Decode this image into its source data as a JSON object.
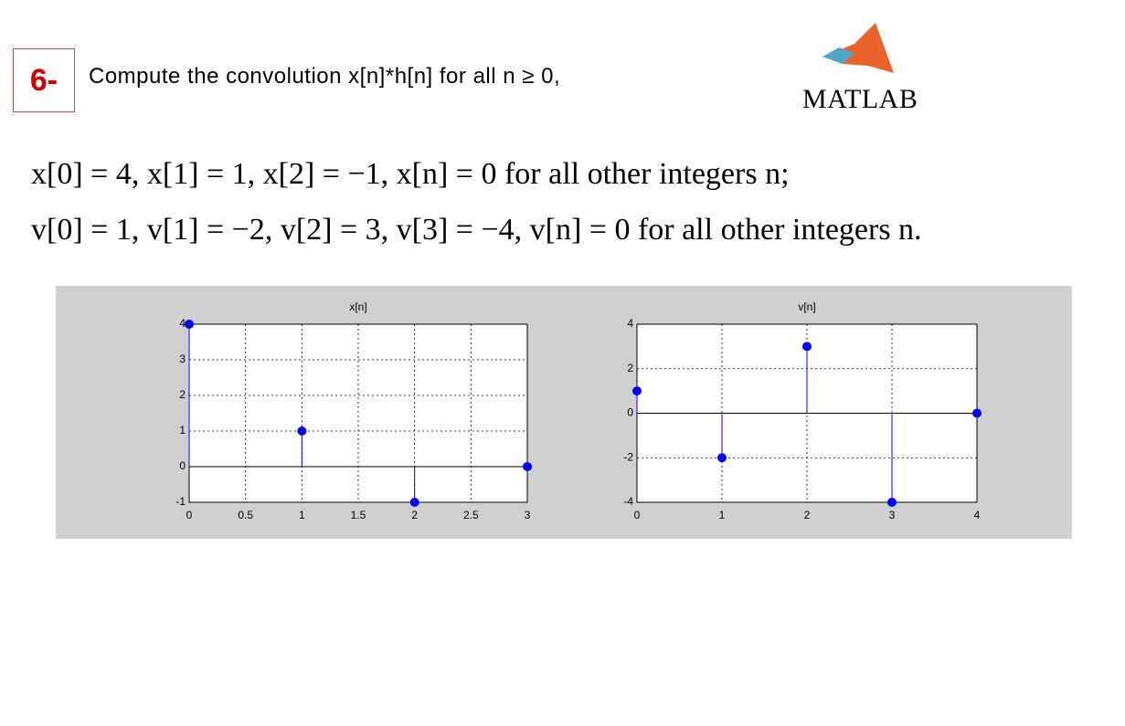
{
  "header": {
    "number": "6-",
    "text": "Compute the convolution  x[n]*h[n] for all n ≥ 0,",
    "logo": "MATLAB"
  },
  "equations": [
    "x[0] = 4, x[1] = 1, x[2] = −1, x[n] = 0 for all other integers n;",
    "v[0] = 1, v[1] = −2, v[2] = 3, v[3] = −4, v[n] = 0 for all other integers n."
  ],
  "chart_data": [
    {
      "type": "stem",
      "title": "x[n]",
      "x": [
        0,
        1,
        2,
        3
      ],
      "values": [
        4,
        1,
        -1,
        0
      ],
      "color": "#0000ff",
      "xlim": [
        0,
        3
      ],
      "ylim": [
        -1,
        4
      ],
      "xticks": [
        0,
        0.5,
        1,
        1.5,
        2,
        2.5,
        3
      ],
      "yticks": [
        -1,
        0,
        1,
        2,
        3,
        4
      ],
      "grid": true
    },
    {
      "type": "stem",
      "title": "v[n]",
      "x": [
        0,
        1,
        2,
        3,
        4
      ],
      "values": [
        1,
        -2,
        3,
        -4,
        0
      ],
      "color": "#0000ff",
      "xlim": [
        0,
        4
      ],
      "ylim": [
        -4,
        4
      ],
      "xticks": [
        0,
        1,
        2,
        3,
        4
      ],
      "yticks": [
        -4,
        -2,
        0,
        2,
        4
      ],
      "grid": true
    }
  ]
}
